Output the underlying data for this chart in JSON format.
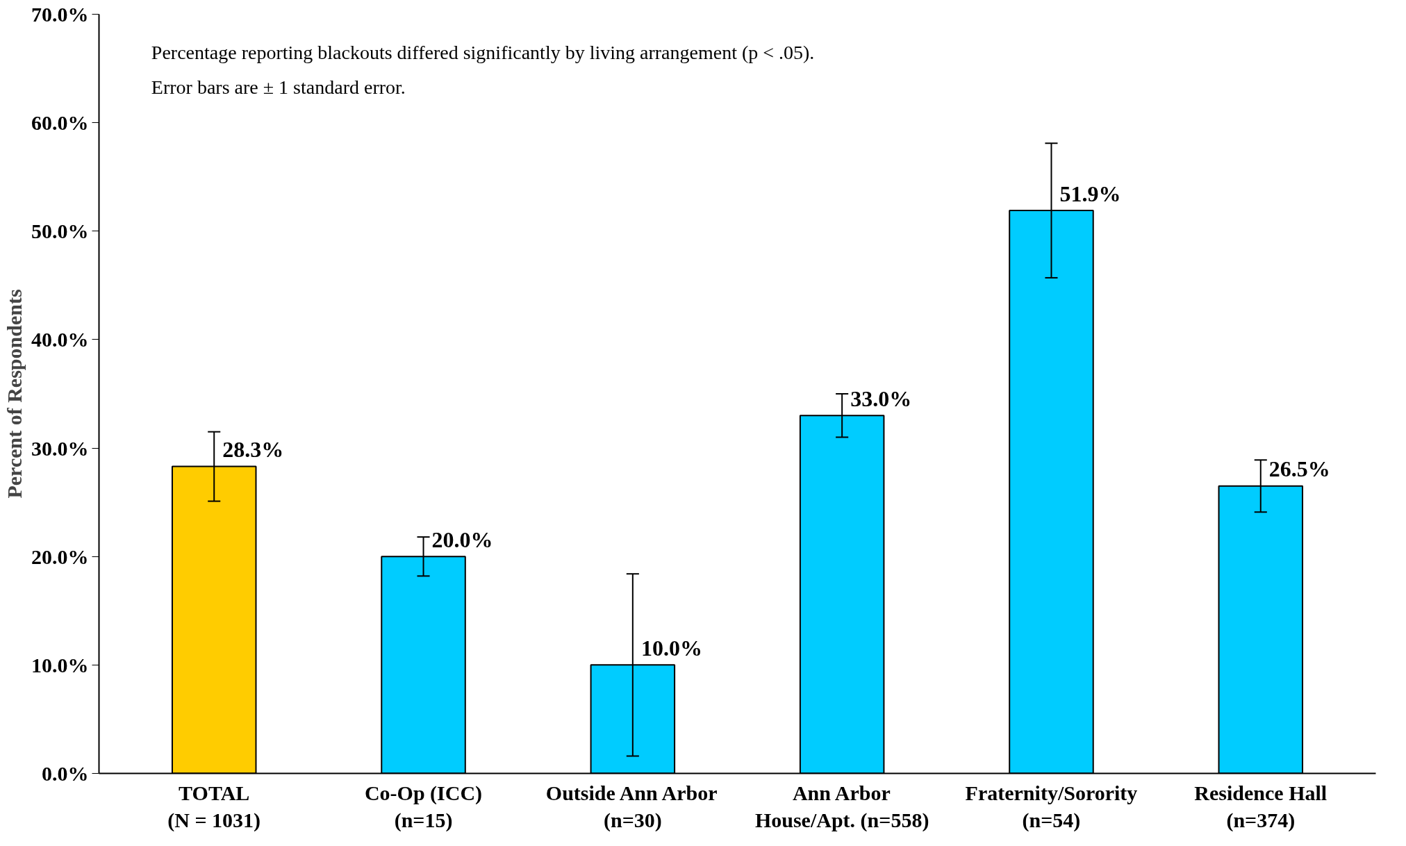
{
  "chart_data": {
    "type": "bar",
    "ylabel": "Percent of Respondents",
    "categories": [
      "TOTAL\n(N = 1031)",
      "Co-Op (ICC)\n(n=15)",
      "Outside Ann Arbor\n(n=30)",
      "Ann Arbor\nHouse/Apt. (n=558)",
      "Fraternity/Sorority\n(n=54)",
      "Residence Hall\n(n=374)"
    ],
    "values": [
      28.3,
      20.0,
      10.0,
      33.0,
      51.9,
      26.5
    ],
    "colors": [
      "#ffcc00",
      "#00ccff",
      "#00ccff",
      "#00ccff",
      "#00ccff",
      "#00ccff"
    ],
    "errors": [
      3.2,
      1.8,
      8.4,
      2.0,
      6.2,
      2.4
    ],
    "value_labels": [
      "28.3%",
      "20.0%",
      "10.0%",
      "33.0%",
      "51.9%",
      "26.5%"
    ],
    "ylim": [
      0,
      70
    ],
    "yticks": [
      {
        "value": 0,
        "label": "0.0%"
      },
      {
        "value": 10,
        "label": "10.0%"
      },
      {
        "value": 20,
        "label": "20.0%"
      },
      {
        "value": 30,
        "label": "30.0%"
      },
      {
        "value": 40,
        "label": "40.0%"
      },
      {
        "value": 50,
        "label": "50.0%"
      },
      {
        "value": 60,
        "label": "60.0%"
      },
      {
        "value": 70,
        "label": "70.0%"
      }
    ],
    "annotations": [
      "Percentage reporting blackouts differed significantly by living arrangement (p < .05).",
      "Error bars are ± 1 standard error."
    ],
    "grid": false
  }
}
